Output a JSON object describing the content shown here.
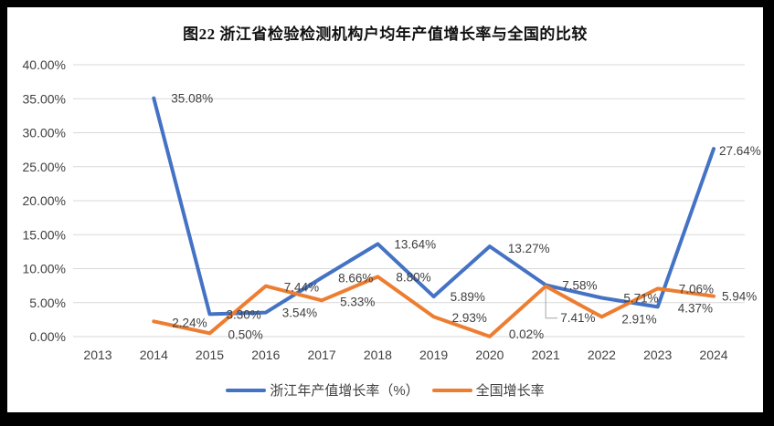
{
  "title": "图22 浙江省检验检测机构户均年产值增长率与全国的比较",
  "frame": {
    "border_color": "#000000",
    "chart_background": "#ffffff"
  },
  "chart_data": {
    "type": "line",
    "x": [
      "2013",
      "2014",
      "2015",
      "2016",
      "2017",
      "2018",
      "2019",
      "2020",
      "2021",
      "2022",
      "2023",
      "2024"
    ],
    "series": [
      {
        "name": "浙江年产值增长率（%）",
        "color": "#4472C4",
        "values": [
          null,
          35.08,
          3.3,
          3.54,
          8.66,
          13.64,
          5.89,
          13.27,
          7.58,
          5.71,
          4.37,
          27.64
        ],
        "labels": [
          null,
          "35.08%",
          "3.30%",
          "3.54%",
          "8.66%",
          "13.64%",
          "5.89%",
          "13.27%",
          "7.58%",
          "5.71%",
          "4.37%",
          "27.64%"
        ]
      },
      {
        "name": "全国增长率",
        "color": "#ED7D31",
        "values": [
          null,
          2.24,
          0.5,
          7.44,
          5.33,
          8.8,
          2.93,
          0.02,
          7.41,
          2.91,
          7.06,
          5.94
        ],
        "labels": [
          null,
          "2.24%",
          "0.50%",
          "7.44%",
          "5.33%",
          "8.80%",
          "2.93%",
          "0.02%",
          "7.41%",
          "2.91%",
          "7.06%",
          "5.94%"
        ]
      }
    ],
    "ylim": [
      0,
      40
    ],
    "y_tick_step": 5,
    "y_ticks": [
      "0.00%",
      "5.00%",
      "10.00%",
      "15.00%",
      "20.00%",
      "25.00%",
      "30.00%",
      "35.00%",
      "40.00%"
    ],
    "grid": true,
    "legend_position": "bottom",
    "gridline_color": "#D9D9D9",
    "text_color": "#404040",
    "leader_line_color": "#A6A6A6",
    "leader_label": "7.41%"
  }
}
